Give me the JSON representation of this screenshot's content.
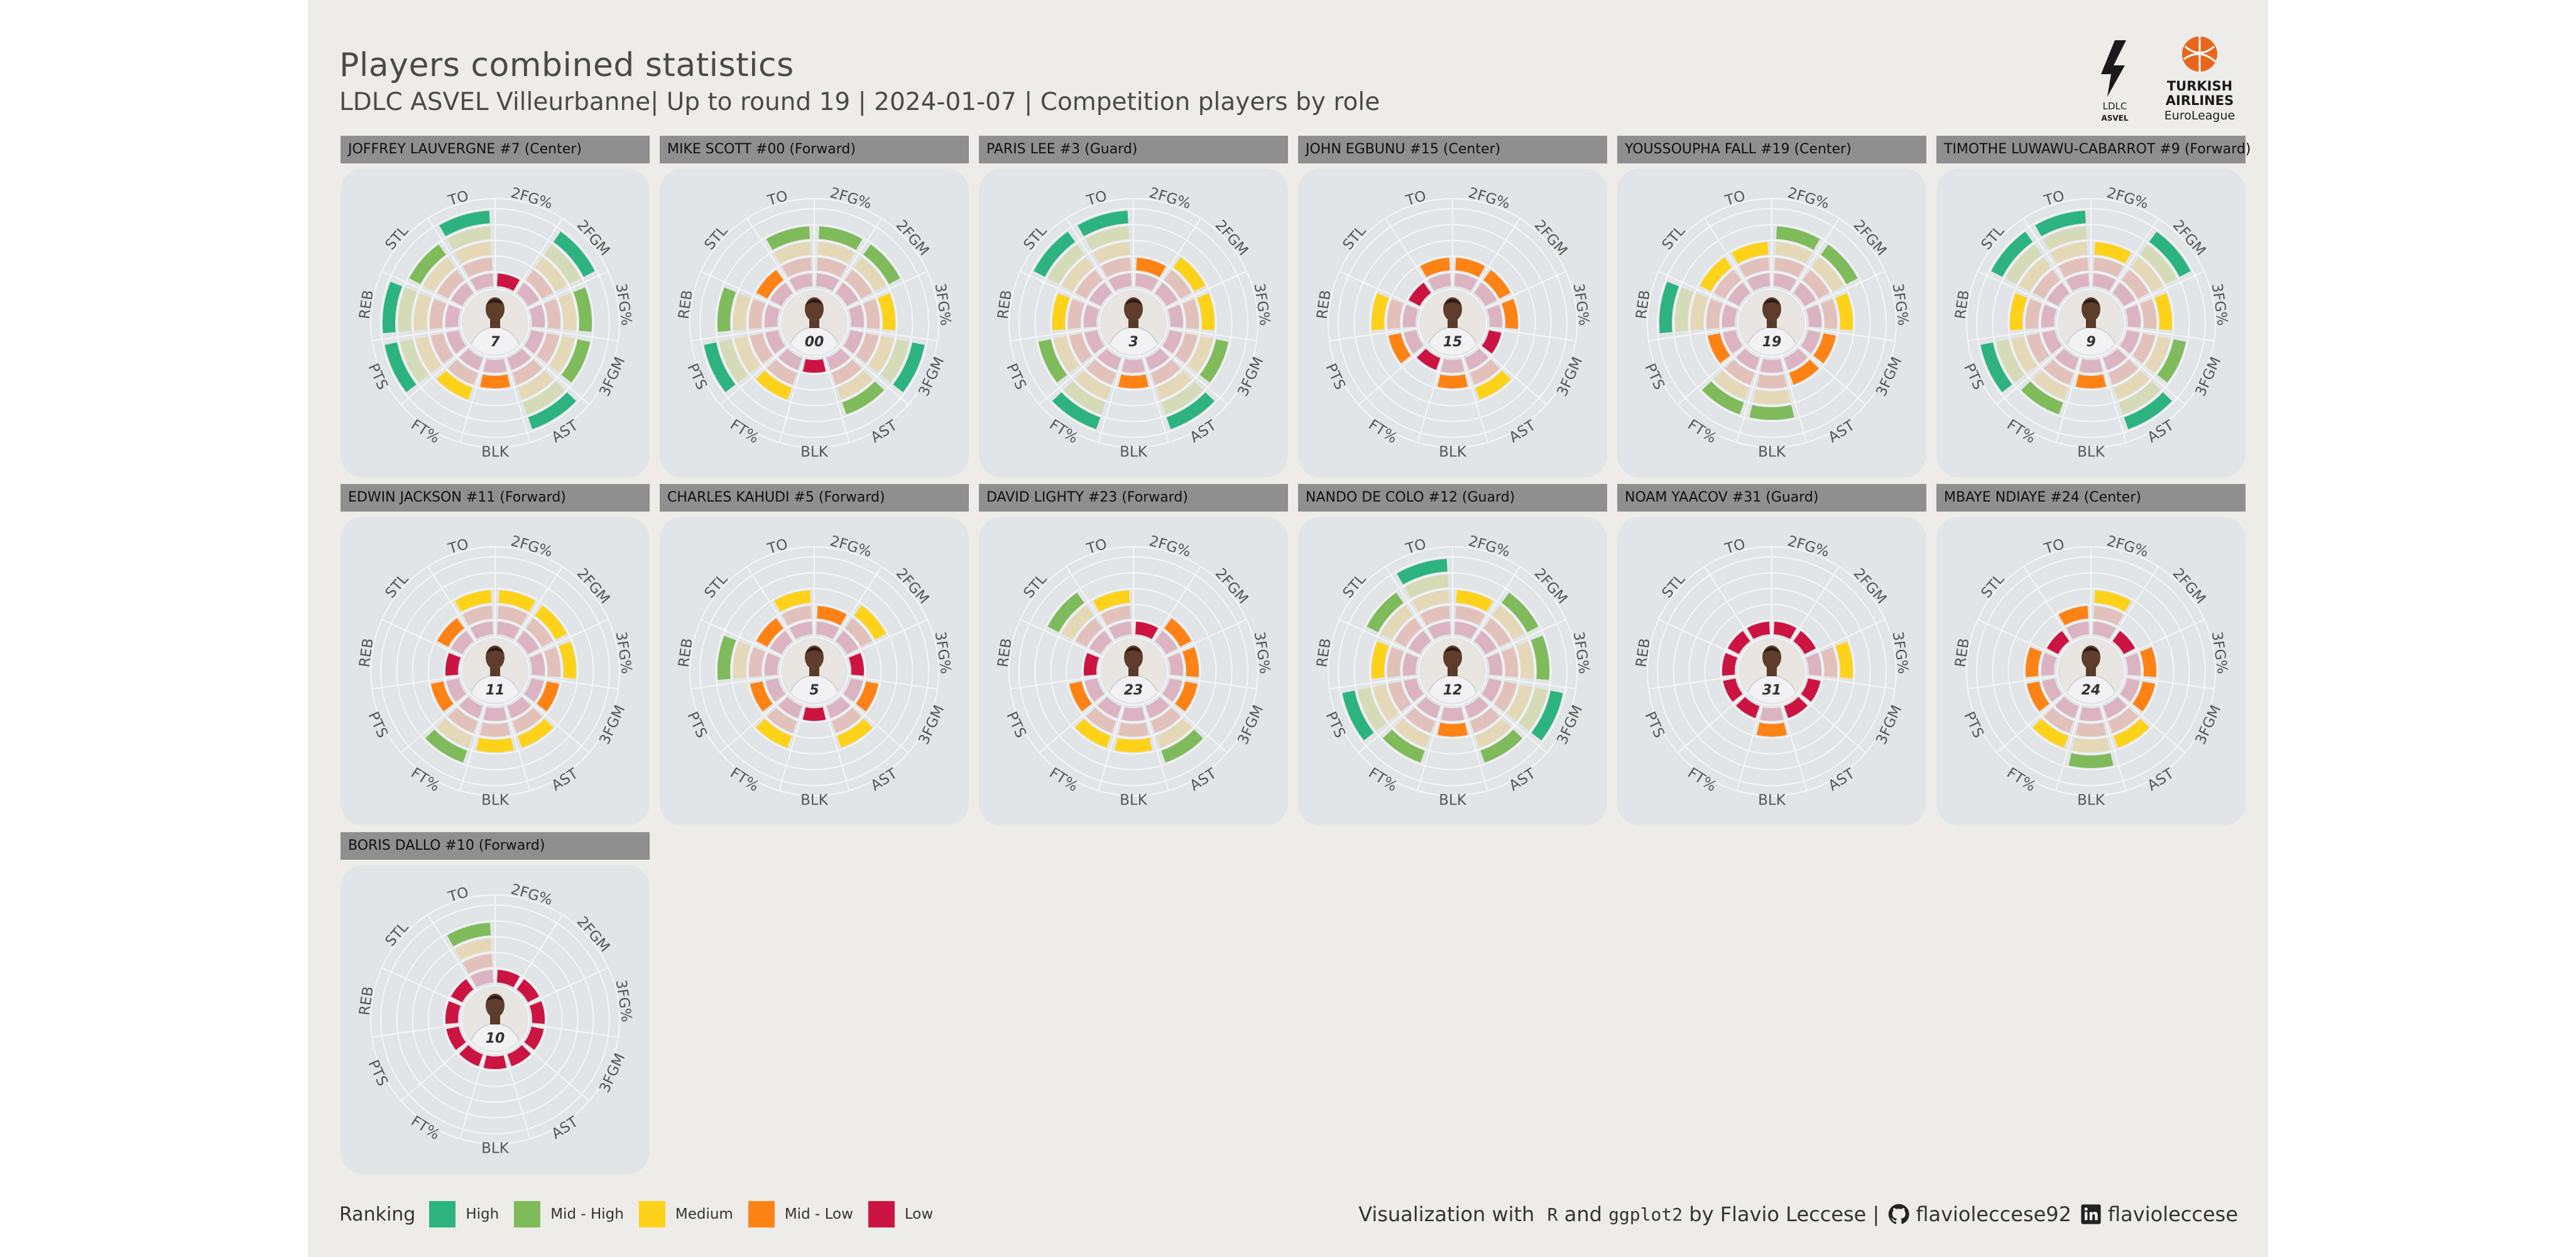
{
  "header": {
    "title": "Players combined statistics",
    "subtitle": "LDLC ASVEL Villeurbanne| Up to round 19 | 2024-01-07 | Competition players by role"
  },
  "logos": {
    "ldlc": "LDLC ASVEL",
    "euroleague": [
      "TURKISH",
      "AIRLINES",
      "EuroLeague"
    ]
  },
  "chart_data": {
    "type": "radial-bar",
    "title": "Players combined statistics",
    "axes": [
      "2FG%",
      "2FGM",
      "3FG%",
      "3FGM",
      "AST",
      "BLK",
      "FT%",
      "PTS",
      "REB",
      "STL",
      "TO"
    ],
    "levels": [
      "Low",
      "Mid - Low",
      "Medium",
      "Mid - High",
      "High"
    ],
    "legend_placement": "bottom-left",
    "players": [
      {
        "label": "JOFFREY LAUVERGNE #7 (Center)",
        "number": "7",
        "ranking": [
          1,
          5,
          4,
          4,
          5,
          2,
          3,
          5,
          5,
          4,
          5
        ]
      },
      {
        "label": "MIKE SCOTT #00 (Forward)",
        "number": "00",
        "ranking": [
          4,
          4,
          3,
          5,
          4,
          1,
          3,
          5,
          4,
          2,
          4
        ]
      },
      {
        "label": "PARIS LEE #3 (Guard)",
        "number": "3",
        "ranking": [
          2,
          3,
          3,
          4,
          5,
          2,
          5,
          4,
          3,
          5,
          5
        ]
      },
      {
        "label": "JOHN EGBUNU #15 (Center)",
        "number": "15",
        "ranking": [
          2,
          2,
          2,
          1,
          3,
          2,
          1,
          2,
          3,
          1,
          2
        ]
      },
      {
        "label": "YOUSSOUPHA FALL #19 (Center)",
        "number": "19",
        "ranking": [
          4,
          4,
          3,
          2,
          2,
          4,
          4,
          2,
          5,
          3,
          3
        ]
      },
      {
        "label": "TIMOTHE LUWAWU-CABARROT #9 (Forward)",
        "number": "9",
        "ranking": [
          3,
          5,
          3,
          4,
          5,
          2,
          4,
          5,
          3,
          5,
          5
        ]
      },
      {
        "label": "EDWIN JACKSON #11 (Forward)",
        "number": "11",
        "ranking": [
          3,
          3,
          3,
          2,
          3,
          3,
          4,
          2,
          1,
          2,
          3
        ]
      },
      {
        "label": "CHARLES KAHUDI #5 (Forward)",
        "number": "5",
        "ranking": [
          2,
          3,
          1,
          2,
          3,
          1,
          3,
          2,
          4,
          2,
          3
        ]
      },
      {
        "label": "DAVID LIGHTY #23 (Forward)",
        "number": "23",
        "ranking": [
          1,
          2,
          2,
          2,
          4,
          3,
          3,
          2,
          1,
          4,
          3
        ]
      },
      {
        "label": "NANDO DE COLO #12 (Guard)",
        "number": "12",
        "ranking": [
          3,
          4,
          4,
          5,
          4,
          2,
          4,
          5,
          3,
          4,
          5
        ]
      },
      {
        "label": "NOAM YAACOV #31 (Guard)",
        "number": "31",
        "ranking": [
          1,
          1,
          3,
          1,
          1,
          2,
          1,
          1,
          1,
          1,
          1
        ]
      },
      {
        "label": "MBAYE NDIAYE #24 (Center)",
        "number": "24",
        "ranking": [
          3,
          1,
          2,
          2,
          3,
          4,
          3,
          2,
          2,
          1,
          2
        ]
      },
      {
        "label": "BORIS DALLO #10 (Forward)",
        "number": "10",
        "ranking": [
          1,
          1,
          1,
          1,
          1,
          1,
          1,
          1,
          1,
          1,
          4
        ]
      }
    ]
  },
  "legend": {
    "title": "Ranking",
    "items": [
      {
        "label": "High",
        "color": "#2db37f"
      },
      {
        "label": "Mid - High",
        "color": "#7fba5b"
      },
      {
        "label": "Medium",
        "color": "#ffd21a"
      },
      {
        "label": "Mid - Low",
        "color": "#ff8214"
      },
      {
        "label": "Low",
        "color": "#cc1442"
      }
    ]
  },
  "credits": {
    "prefix": "Visualization with",
    "lang": "R",
    "and": "and",
    "pkg": "ggplot2",
    "author": "by Flavio Leccese |",
    "github": "flavioleccese92",
    "linkedin": "flavioleccese"
  },
  "colors": {
    "background": "#eeece8",
    "panel": "#e2e5e7",
    "strip": "#8f8f8f",
    "shade": [
      "#dbb3c1",
      "#e2c1ba",
      "#e4d8b6",
      "#d5dbb6",
      "#c7e0c9"
    ]
  }
}
